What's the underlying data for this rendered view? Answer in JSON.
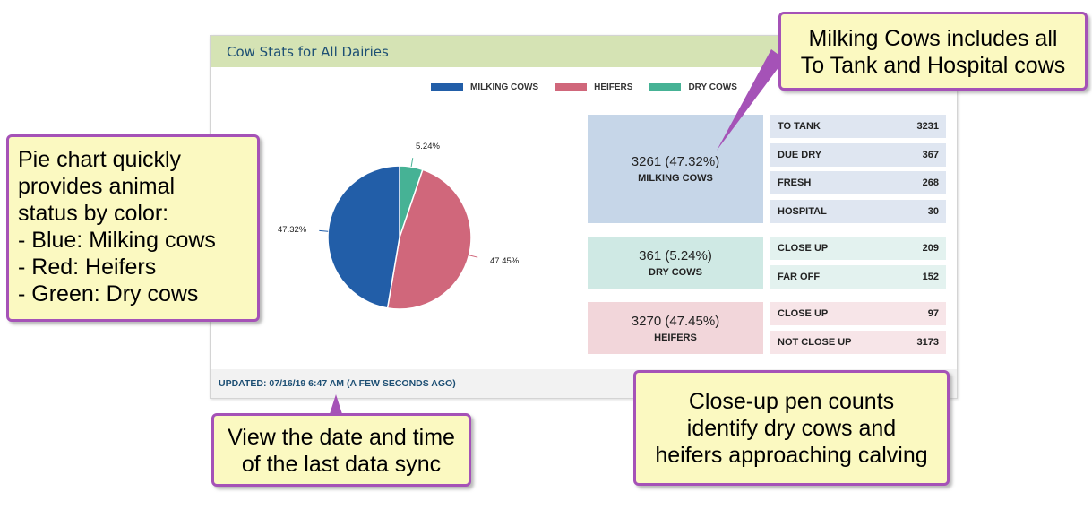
{
  "panel": {
    "title": "Cow Stats for All Dairies",
    "updated": "UPDATED: 07/16/19 6:47 AM (A FEW SECONDS AGO)"
  },
  "legend": [
    {
      "label": "MILKING COWS",
      "color": "#225ea8"
    },
    {
      "label": "HEIFERS",
      "color": "#d0677b"
    },
    {
      "label": "DRY COWS",
      "color": "#46b295"
    }
  ],
  "chart_data": {
    "type": "pie",
    "slices": [
      {
        "name": "DRY COWS",
        "value": 5.24,
        "label": "5.24%",
        "color": "#46b295"
      },
      {
        "name": "HEIFERS",
        "value": 47.45,
        "label": "47.45%",
        "color": "#d0677b"
      },
      {
        "name": "MILKING COWS",
        "value": 47.32,
        "label": "47.32%",
        "color": "#225ea8"
      }
    ]
  },
  "groups": [
    {
      "main": "3261 (47.32%)",
      "label": "MILKING COWS",
      "color": "#c6d6e8",
      "rows": [
        {
          "label": "TO TANK",
          "value": "3231"
        },
        {
          "label": "DUE DRY",
          "value": "367"
        },
        {
          "label": "FRESH",
          "value": "268"
        },
        {
          "label": "HOSPITAL",
          "value": "30"
        }
      ],
      "row_color": "#dfe6f1"
    },
    {
      "main": "361 (5.24%)",
      "label": "DRY COWS",
      "color": "#cfe9e4",
      "rows": [
        {
          "label": "CLOSE UP",
          "value": "209"
        },
        {
          "label": "FAR OFF",
          "value": "152"
        }
      ],
      "row_color": "#e3f2ef"
    },
    {
      "main": "3270 (47.45%)",
      "label": "HEIFERS",
      "color": "#f2d6da",
      "rows": [
        {
          "label": "CLOSE UP",
          "value": "97"
        },
        {
          "label": "NOT CLOSE UP",
          "value": "3173"
        }
      ],
      "row_color": "#f7e5e8"
    }
  ],
  "callouts": {
    "pie": [
      "Pie chart quickly",
      "provides animal",
      "status by color:",
      "- Blue: Milking cows",
      "- Red: Heifers",
      "- Green: Dry cows"
    ],
    "milking": [
      "Milking Cows includes all",
      "To Tank and Hospital cows"
    ],
    "sync": [
      "View the date and time",
      "of the last data sync"
    ],
    "closeup": [
      "Close-up pen counts",
      "identify dry cows and",
      "heifers approaching calving"
    ]
  },
  "colors": {
    "callout_border": "#a552b7",
    "callout_fill": "#fbf9c1",
    "header_fill": "#d5e3b4"
  }
}
